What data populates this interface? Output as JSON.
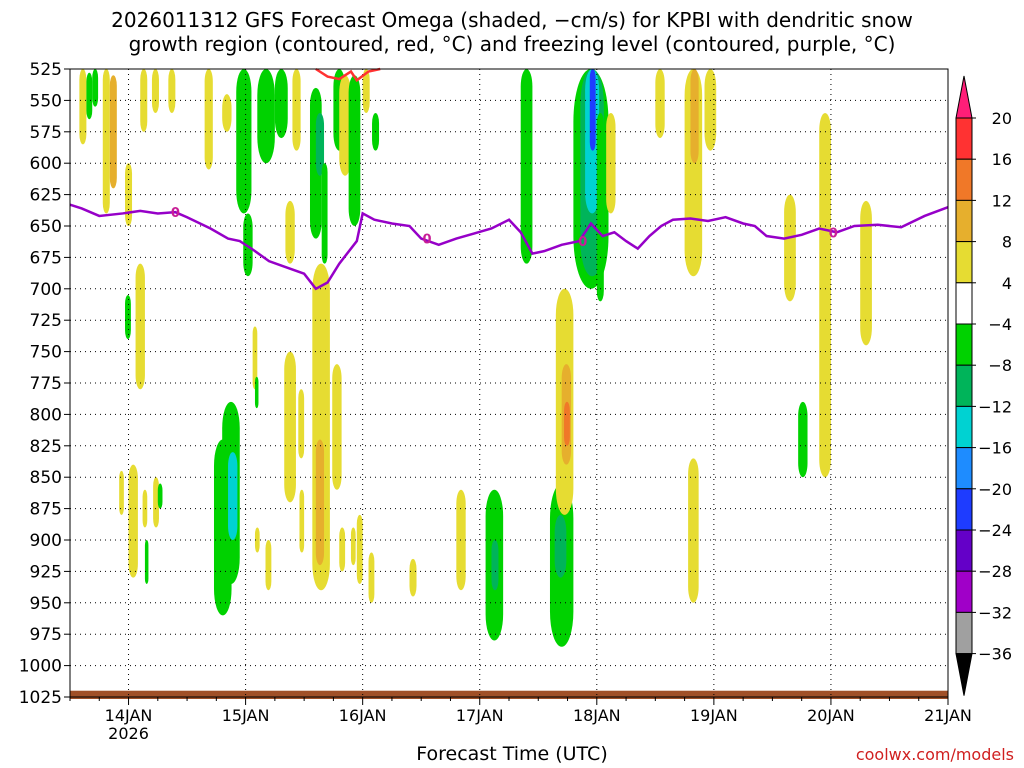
{
  "title": "2026011312 GFS Forecast Omega (shaded, −cm/s) for KPBI with dendritic snow\ngrowth region (contoured, red, °C) and freezing level (contoured, purple, °C)",
  "xlabel": "Forecast Time (UTC)",
  "credit": "coolwx.com/models",
  "chart_data": {
    "type": "heatmap",
    "title": "2026011312 GFS Forecast Omega (shaded, −cm/s) for KPBI with dendritic snow growth region (contoured, red, °C) and freezing level (contoured, purple, °C)",
    "xlabel": "Forecast Time (UTC)",
    "ylabel": "",
    "y_axis": {
      "ticks": [
        525,
        550,
        575,
        600,
        625,
        650,
        675,
        700,
        725,
        750,
        775,
        800,
        825,
        850,
        875,
        900,
        925,
        950,
        975,
        1000,
        1025
      ],
      "range": [
        525,
        1025
      ],
      "direction": "inverted"
    },
    "x_axis": {
      "ticks": [
        {
          "t": 0.5,
          "label": "14JAN",
          "sub": "2026"
        },
        {
          "t": 1.5,
          "label": "15JAN",
          "sub": ""
        },
        {
          "t": 2.5,
          "label": "16JAN",
          "sub": ""
        },
        {
          "t": 3.5,
          "label": "17JAN",
          "sub": ""
        },
        {
          "t": 4.5,
          "label": "18JAN",
          "sub": ""
        },
        {
          "t": 5.5,
          "label": "19JAN",
          "sub": ""
        },
        {
          "t": 6.5,
          "label": "20JAN",
          "sub": ""
        },
        {
          "t": 7.5,
          "label": "21JAN",
          "sub": ""
        }
      ],
      "range": [
        0,
        7.5
      ],
      "units": "days after 2026011312"
    },
    "grid": true,
    "colorbar": {
      "labels": [
        "20",
        "16",
        "12",
        "8",
        "4",
        "−4",
        "−8",
        "−12",
        "−16",
        "−20",
        "−24",
        "−28",
        "−32",
        "−36"
      ],
      "colors": [
        "#ff1e78",
        "#ff3232",
        "#f07828",
        "#e6af2d",
        "#e6dc32",
        "#ffffff",
        "#00d200",
        "#00b45a",
        "#00d2d2",
        "#1e8cff",
        "#1e3cff",
        "#6400c8",
        "#a000c8",
        "#a0a0a0",
        "#000000"
      ]
    },
    "freezing_level": {
      "label": "0",
      "color": "#9600c8",
      "points": [
        [
          0,
          633
        ],
        [
          0.1,
          636
        ],
        [
          0.25,
          642
        ],
        [
          0.45,
          640
        ],
        [
          0.6,
          638
        ],
        [
          0.75,
          640
        ],
        [
          0.9,
          639
        ],
        [
          1.0,
          643
        ],
        [
          1.2,
          652
        ],
        [
          1.35,
          660
        ],
        [
          1.45,
          662
        ],
        [
          1.55,
          668
        ],
        [
          1.7,
          678
        ],
        [
          1.85,
          683
        ],
        [
          2.0,
          688
        ],
        [
          2.1,
          700
        ],
        [
          2.2,
          695
        ],
        [
          2.3,
          680
        ],
        [
          2.45,
          662
        ],
        [
          2.5,
          640
        ],
        [
          2.6,
          645
        ],
        [
          2.75,
          648
        ],
        [
          2.9,
          650
        ],
        [
          3.0,
          660
        ],
        [
          3.15,
          665
        ],
        [
          3.3,
          660
        ],
        [
          3.45,
          656
        ],
        [
          3.6,
          652
        ],
        [
          3.75,
          645
        ],
        [
          3.85,
          655
        ],
        [
          3.95,
          672
        ],
        [
          4.05,
          670
        ],
        [
          4.2,
          665
        ],
        [
          4.35,
          662
        ],
        [
          4.45,
          648
        ],
        [
          4.55,
          658
        ],
        [
          4.65,
          655
        ],
        [
          4.75,
          662
        ],
        [
          4.85,
          668
        ],
        [
          4.95,
          658
        ],
        [
          5.05,
          650
        ],
        [
          5.15,
          645
        ],
        [
          5.3,
          644
        ],
        [
          5.45,
          646
        ],
        [
          5.6,
          643
        ],
        [
          5.75,
          648
        ],
        [
          5.85,
          650
        ],
        [
          5.95,
          658
        ],
        [
          6.1,
          660
        ],
        [
          6.25,
          657
        ],
        [
          6.4,
          652
        ],
        [
          6.55,
          655
        ],
        [
          6.7,
          650
        ],
        [
          6.9,
          649
        ],
        [
          7.1,
          651
        ],
        [
          7.3,
          642
        ],
        [
          7.5,
          635
        ]
      ]
    },
    "dendritic_region": {
      "color": "#ff3232",
      "points": [
        [
          2.1,
          525
        ],
        [
          2.2,
          531
        ],
        [
          2.3,
          533
        ],
        [
          2.4,
          527
        ],
        [
          2.45,
          534
        ],
        [
          2.55,
          527
        ],
        [
          2.65,
          525
        ]
      ]
    },
    "terrain": {
      "color": "#a05028",
      "top_hpa": 1020,
      "bottom_hpa": 1025
    },
    "omega_regions": [
      {
        "t0": 0.08,
        "t1": 0.14,
        "p0": 525,
        "p1": 585,
        "value": 4
      },
      {
        "t0": 0.14,
        "t1": 0.19,
        "p0": 528,
        "p1": 565,
        "value": -6
      },
      {
        "t0": 0.19,
        "t1": 0.24,
        "p0": 525,
        "p1": 555,
        "value": -6
      },
      {
        "t0": 0.28,
        "t1": 0.34,
        "p0": 525,
        "p1": 640,
        "value": 4
      },
      {
        "t0": 0.34,
        "t1": 0.4,
        "p0": 530,
        "p1": 620,
        "value": 8
      },
      {
        "t0": 0.47,
        "t1": 0.53,
        "p0": 600,
        "p1": 650,
        "value": 4
      },
      {
        "t0": 0.6,
        "t1": 0.66,
        "p0": 525,
        "p1": 575,
        "value": 4
      },
      {
        "t0": 0.7,
        "t1": 0.76,
        "p0": 525,
        "p1": 560,
        "value": 4
      },
      {
        "t0": 0.84,
        "t1": 0.9,
        "p0": 525,
        "p1": 560,
        "value": 4
      },
      {
        "t0": 1.15,
        "t1": 1.22,
        "p0": 525,
        "p1": 605,
        "value": 4
      },
      {
        "t0": 1.3,
        "t1": 1.38,
        "p0": 545,
        "p1": 575,
        "value": 4
      },
      {
        "t0": 1.42,
        "t1": 1.55,
        "p0": 525,
        "p1": 640,
        "value": -7
      },
      {
        "t0": 1.48,
        "t1": 1.56,
        "p0": 640,
        "p1": 690,
        "value": -6
      },
      {
        "t0": 1.6,
        "t1": 1.75,
        "p0": 525,
        "p1": 600,
        "value": -7
      },
      {
        "t0": 1.75,
        "t1": 1.86,
        "p0": 525,
        "p1": 580,
        "value": -6
      },
      {
        "t0": 1.84,
        "t1": 1.92,
        "p0": 630,
        "p1": 680,
        "value": 4
      },
      {
        "t0": 1.9,
        "t1": 1.97,
        "p0": 525,
        "p1": 590,
        "value": 4
      },
      {
        "t0": 2.05,
        "t1": 2.15,
        "p0": 540,
        "p1": 660,
        "value": -7
      },
      {
        "t0": 2.1,
        "t1": 2.17,
        "p0": 560,
        "p1": 610,
        "value": -10
      },
      {
        "t0": 2.15,
        "t1": 2.2,
        "p0": 600,
        "p1": 680,
        "value": -6
      },
      {
        "t0": 2.25,
        "t1": 2.35,
        "p0": 525,
        "p1": 590,
        "value": -6
      },
      {
        "t0": 2.3,
        "t1": 2.4,
        "p0": 530,
        "p1": 610,
        "value": 4
      },
      {
        "t0": 2.38,
        "t1": 2.48,
        "p0": 530,
        "p1": 650,
        "value": -7
      },
      {
        "t0": 2.5,
        "t1": 2.56,
        "p0": 525,
        "p1": 560,
        "value": 4
      },
      {
        "t0": 2.58,
        "t1": 2.64,
        "p0": 560,
        "p1": 590,
        "value": -6
      },
      {
        "t0": 0.47,
        "t1": 0.52,
        "p0": 705,
        "p1": 740,
        "value": -6
      },
      {
        "t0": 0.56,
        "t1": 0.64,
        "p0": 680,
        "p1": 780,
        "value": 4
      },
      {
        "t0": 0.5,
        "t1": 0.58,
        "p0": 840,
        "p1": 930,
        "value": 4
      },
      {
        "t0": 0.42,
        "t1": 0.46,
        "p0": 845,
        "p1": 880,
        "value": 4
      },
      {
        "t0": 0.71,
        "t1": 0.76,
        "p0": 850,
        "p1": 890,
        "value": 4
      },
      {
        "t0": 0.62,
        "t1": 0.66,
        "p0": 860,
        "p1": 890,
        "value": 4
      },
      {
        "t0": 0.64,
        "t1": 0.67,
        "p0": 900,
        "p1": 935,
        "value": -6
      },
      {
        "t0": 0.75,
        "t1": 0.79,
        "p0": 855,
        "p1": 875,
        "value": -6
      },
      {
        "t0": 1.23,
        "t1": 1.38,
        "p0": 820,
        "p1": 960,
        "value": -7
      },
      {
        "t0": 1.3,
        "t1": 1.45,
        "p0": 790,
        "p1": 935,
        "value": -6
      },
      {
        "t0": 1.35,
        "t1": 1.43,
        "p0": 830,
        "p1": 900,
        "value": -14
      },
      {
        "t0": 1.56,
        "t1": 1.6,
        "p0": 730,
        "p1": 780,
        "value": 4
      },
      {
        "t0": 1.58,
        "t1": 1.61,
        "p0": 770,
        "p1": 795,
        "value": -6
      },
      {
        "t0": 1.58,
        "t1": 1.62,
        "p0": 890,
        "p1": 910,
        "value": 4
      },
      {
        "t0": 1.67,
        "t1": 1.72,
        "p0": 900,
        "p1": 940,
        "value": 4
      },
      {
        "t0": 1.83,
        "t1": 1.93,
        "p0": 750,
        "p1": 870,
        "value": 4
      },
      {
        "t0": 1.95,
        "t1": 2.0,
        "p0": 780,
        "p1": 835,
        "value": 4
      },
      {
        "t0": 1.96,
        "t1": 2.0,
        "p0": 860,
        "p1": 910,
        "value": 4
      },
      {
        "t0": 2.07,
        "t1": 2.22,
        "p0": 680,
        "p1": 940,
        "value": 4
      },
      {
        "t0": 2.1,
        "t1": 2.17,
        "p0": 820,
        "p1": 920,
        "value": 8
      },
      {
        "t0": 2.24,
        "t1": 2.32,
        "p0": 760,
        "p1": 860,
        "value": 4
      },
      {
        "t0": 2.3,
        "t1": 2.35,
        "p0": 890,
        "p1": 925,
        "value": 4
      },
      {
        "t0": 2.4,
        "t1": 2.44,
        "p0": 890,
        "p1": 920,
        "value": 4
      },
      {
        "t0": 2.45,
        "t1": 2.5,
        "p0": 880,
        "p1": 935,
        "value": 4
      },
      {
        "t0": 2.55,
        "t1": 2.6,
        "p0": 910,
        "p1": 950,
        "value": 4
      },
      {
        "t0": 2.9,
        "t1": 2.96,
        "p0": 915,
        "p1": 945,
        "value": 4
      },
      {
        "t0": 3.3,
        "t1": 3.38,
        "p0": 860,
        "p1": 940,
        "value": 4
      },
      {
        "t0": 3.55,
        "t1": 3.7,
        "p0": 860,
        "p1": 980,
        "value": -7
      },
      {
        "t0": 3.6,
        "t1": 3.66,
        "p0": 900,
        "p1": 940,
        "value": -10
      },
      {
        "t0": 3.85,
        "t1": 3.95,
        "p0": 525,
        "p1": 680,
        "value": -7
      },
      {
        "t0": 4.1,
        "t1": 4.3,
        "p0": 855,
        "p1": 985,
        "value": -7
      },
      {
        "t0": 4.14,
        "t1": 4.24,
        "p0": 880,
        "p1": 930,
        "value": -10
      },
      {
        "t0": 4.15,
        "t1": 4.3,
        "p0": 700,
        "p1": 880,
        "value": 4
      },
      {
        "t0": 4.2,
        "t1": 4.28,
        "p0": 760,
        "p1": 840,
        "value": 8
      },
      {
        "t0": 4.22,
        "t1": 4.27,
        "p0": 790,
        "p1": 825,
        "value": 12
      },
      {
        "t0": 4.3,
        "t1": 4.6,
        "p0": 525,
        "p1": 700,
        "value": -7
      },
      {
        "t0": 4.36,
        "t1": 4.56,
        "p0": 525,
        "p1": 690,
        "value": -10
      },
      {
        "t0": 4.4,
        "t1": 4.52,
        "p0": 525,
        "p1": 640,
        "value": -14
      },
      {
        "t0": 4.44,
        "t1": 4.49,
        "p0": 525,
        "p1": 590,
        "value": -22
      },
      {
        "t0": 4.5,
        "t1": 4.56,
        "p0": 560,
        "p1": 710,
        "value": -6
      },
      {
        "t0": 4.58,
        "t1": 4.66,
        "p0": 560,
        "p1": 640,
        "value": 4
      },
      {
        "t0": 5.0,
        "t1": 5.08,
        "p0": 525,
        "p1": 580,
        "value": 4
      },
      {
        "t0": 5.25,
        "t1": 5.4,
        "p0": 525,
        "p1": 690,
        "value": 4
      },
      {
        "t0": 5.3,
        "t1": 5.37,
        "p0": 525,
        "p1": 600,
        "value": 8
      },
      {
        "t0": 5.42,
        "t1": 5.52,
        "p0": 525,
        "p1": 590,
        "value": 4
      },
      {
        "t0": 5.28,
        "t1": 5.37,
        "p0": 835,
        "p1": 950,
        "value": 4
      },
      {
        "t0": 6.1,
        "t1": 6.2,
        "p0": 625,
        "p1": 710,
        "value": 4
      },
      {
        "t0": 6.22,
        "t1": 6.3,
        "p0": 790,
        "p1": 850,
        "value": -6
      },
      {
        "t0": 6.4,
        "t1": 6.5,
        "p0": 560,
        "p1": 850,
        "value": 4
      },
      {
        "t0": 6.75,
        "t1": 6.85,
        "p0": 630,
        "p1": 745,
        "value": 4
      }
    ]
  }
}
